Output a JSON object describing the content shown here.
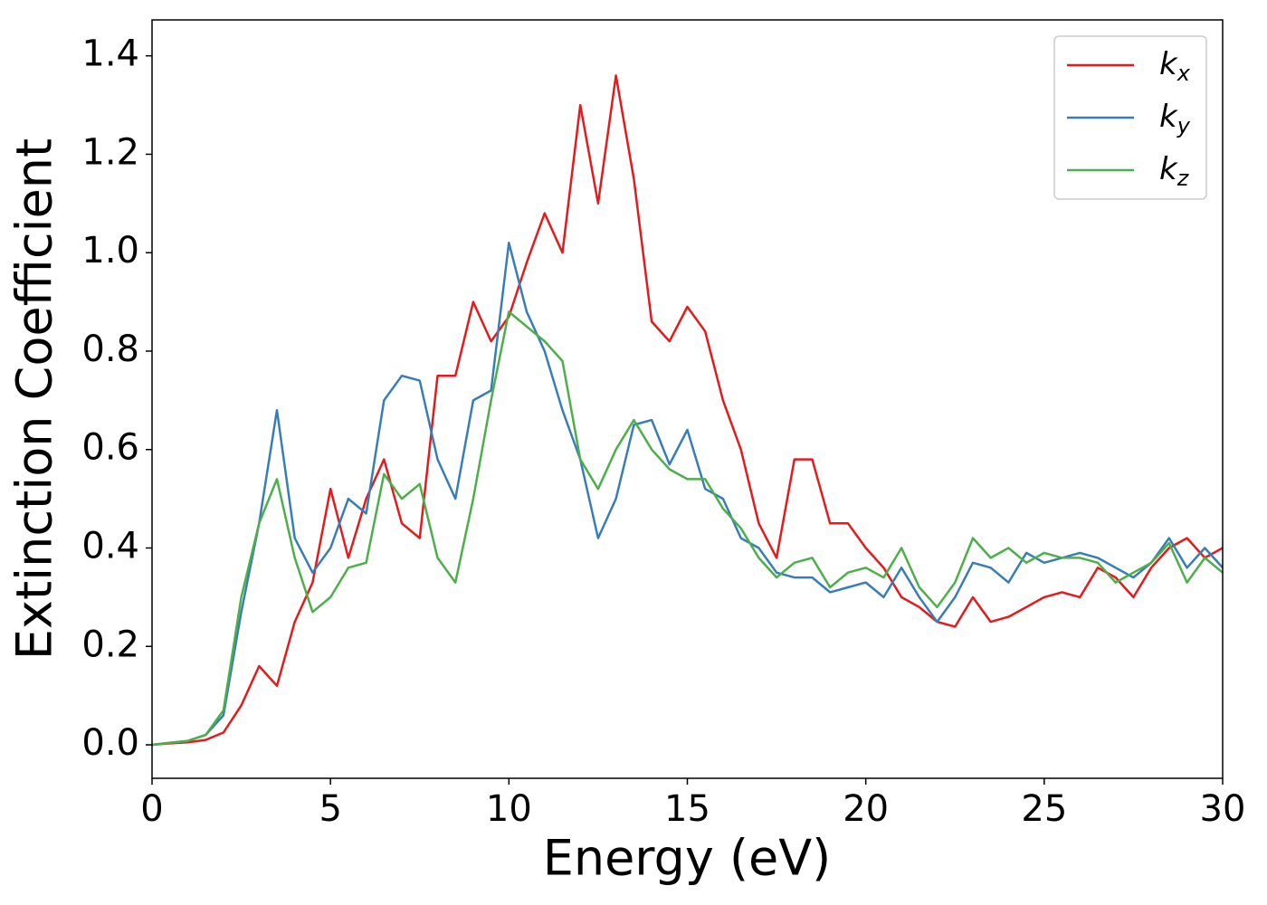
{
  "chart_data": {
    "type": "line",
    "xlabel": "Energy (eV)",
    "ylabel": "Extinction Coefficient",
    "x": [
      0,
      0.5,
      1,
      1.5,
      2,
      2.5,
      3,
      3.5,
      4,
      4.5,
      5,
      5.5,
      6,
      6.5,
      7,
      7.5,
      8,
      8.5,
      9,
      9.5,
      10,
      10.5,
      11,
      11.5,
      12,
      12.5,
      13,
      13.5,
      14,
      14.5,
      15,
      15.5,
      16,
      16.5,
      17,
      17.5,
      18,
      18.5,
      19,
      19.5,
      20,
      20.5,
      21,
      21.5,
      22,
      22.5,
      23,
      23.5,
      24,
      24.5,
      25,
      25.5,
      26,
      26.5,
      27,
      27.5,
      28,
      28.5,
      29,
      29.5,
      30
    ],
    "series": [
      {
        "name": "kx",
        "color": "#e41a1c",
        "values": [
          0,
          0.003,
          0.005,
          0.01,
          0.025,
          0.08,
          0.16,
          0.12,
          0.25,
          0.33,
          0.52,
          0.38,
          0.5,
          0.58,
          0.45,
          0.42,
          0.75,
          0.75,
          0.9,
          0.82,
          0.87,
          0.98,
          1.08,
          1.0,
          1.3,
          1.1,
          1.36,
          1.15,
          0.86,
          0.82,
          0.89,
          0.84,
          0.7,
          0.6,
          0.45,
          0.38,
          0.58,
          0.58,
          0.45,
          0.45,
          0.4,
          0.36,
          0.3,
          0.28,
          0.25,
          0.24,
          0.3,
          0.25,
          0.26,
          0.28,
          0.3,
          0.31,
          0.3,
          0.36,
          0.34,
          0.3,
          0.36,
          0.4,
          0.42,
          0.38,
          0.4
        ]
      },
      {
        "name": "ky",
        "color": "#377eb8",
        "values": [
          0,
          0.004,
          0.008,
          0.02,
          0.06,
          0.27,
          0.45,
          0.68,
          0.42,
          0.35,
          0.4,
          0.5,
          0.47,
          0.7,
          0.75,
          0.74,
          0.58,
          0.5,
          0.7,
          0.72,
          1.02,
          0.88,
          0.8,
          0.68,
          0.58,
          0.42,
          0.5,
          0.65,
          0.66,
          0.57,
          0.64,
          0.52,
          0.5,
          0.42,
          0.4,
          0.35,
          0.34,
          0.34,
          0.31,
          0.32,
          0.33,
          0.3,
          0.36,
          0.3,
          0.25,
          0.3,
          0.37,
          0.36,
          0.33,
          0.39,
          0.37,
          0.38,
          0.39,
          0.38,
          0.36,
          0.34,
          0.37,
          0.42,
          0.36,
          0.4,
          0.36
        ]
      },
      {
        "name": "kz",
        "color": "#4daf4a",
        "values": [
          0,
          0.004,
          0.008,
          0.02,
          0.07,
          0.3,
          0.45,
          0.54,
          0.38,
          0.27,
          0.3,
          0.36,
          0.37,
          0.55,
          0.5,
          0.53,
          0.38,
          0.33,
          0.5,
          0.7,
          0.88,
          0.85,
          0.82,
          0.78,
          0.58,
          0.52,
          0.6,
          0.66,
          0.6,
          0.56,
          0.54,
          0.54,
          0.48,
          0.44,
          0.38,
          0.34,
          0.37,
          0.38,
          0.32,
          0.35,
          0.36,
          0.34,
          0.4,
          0.32,
          0.28,
          0.33,
          0.42,
          0.38,
          0.4,
          0.37,
          0.39,
          0.38,
          0.38,
          0.37,
          0.33,
          0.35,
          0.37,
          0.41,
          0.33,
          0.38,
          0.35
        ]
      }
    ],
    "xlim": [
      0,
      30
    ],
    "xticks": [
      0,
      5,
      10,
      15,
      20,
      25,
      30
    ],
    "ylim": [
      -0.068,
      1.473
    ],
    "yticks": [
      {
        "value": 0,
        "label": "0.0"
      },
      0.2,
      0.4,
      0.6,
      0.8,
      {
        "value": 1,
        "label": "1.0"
      },
      1.2,
      1.4
    ],
    "legend": "upper right",
    "grid": false
  }
}
